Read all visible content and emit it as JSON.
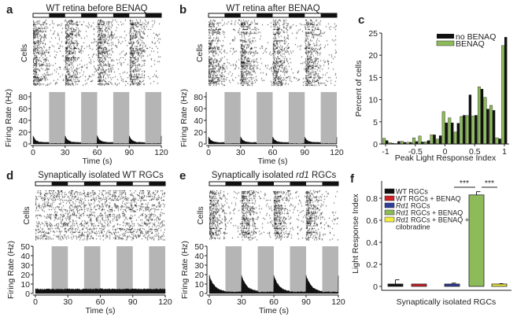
{
  "panels": {
    "a": {
      "label": "a",
      "title": "WT retina before BENAQ",
      "ylabel_raster": "Cells",
      "ylabel": "Firing Rate (Hz)",
      "xlabel": "Time (s)",
      "yticks": [
        "0",
        "20",
        "40",
        "60",
        "80"
      ],
      "xticks": [
        "0",
        "30",
        "60",
        "90",
        "120"
      ]
    },
    "b": {
      "label": "b",
      "title": "WT retina after BENAQ",
      "ylabel_raster": "Cells",
      "ylabel": "Firing Rate (Hz)",
      "xlabel": "Time (s)",
      "yticks": [
        "0",
        "20",
        "40",
        "60",
        "80"
      ],
      "xticks": [
        "0",
        "30",
        "60",
        "90",
        "120"
      ]
    },
    "d": {
      "label": "d",
      "title": "Synaptically isolated WT RGCs",
      "ylabel_raster": "Cells",
      "ylabel": "Firing Rate (Hz)",
      "xlabel": "Time (s)",
      "yticks": [
        "0",
        "10",
        "20",
        "30",
        "40",
        "50"
      ],
      "xticks": [
        "0",
        "30",
        "60",
        "90",
        "120"
      ]
    },
    "e": {
      "label": "e",
      "title_pre": "Synaptically isolated ",
      "title_it": "rd1",
      "title_post": " RGCs",
      "ylabel_raster": "Cells",
      "ylabel": "Firing Rate (Hz)",
      "xlabel": "Time (s)",
      "yticks": [
        "0",
        "10",
        "20",
        "30",
        "40",
        "50"
      ],
      "xticks": [
        "0",
        "30",
        "60",
        "90",
        "120"
      ]
    },
    "c": {
      "label": "c"
    },
    "f": {
      "label": "f"
    }
  },
  "colors": {
    "black": "#111111",
    "green": "#8dbb5a",
    "red": "#d22027",
    "blue": "#2f3e9a",
    "yellow": "#f3ee3c",
    "shade": "#b5b5b5"
  },
  "chart_data": [
    {
      "panel": "a",
      "type": "area",
      "xlim": [
        0,
        120
      ],
      "ylim": [
        0,
        88
      ],
      "stimulus_period_s": 30,
      "light_on": [
        [
          0,
          15
        ],
        [
          30,
          45
        ],
        [
          60,
          75
        ],
        [
          90,
          105
        ]
      ],
      "light_off": [
        [
          15,
          30
        ],
        [
          45,
          60
        ],
        [
          75,
          90
        ],
        [
          105,
          120
        ]
      ],
      "trace": {
        "peak_hz": 14,
        "baseline_hz": 2.5,
        "decay_s": 2.5,
        "dark_hz": 0.5
      },
      "raster": "transient"
    },
    {
      "panel": "b",
      "type": "area",
      "xlim": [
        0,
        120
      ],
      "ylim": [
        0,
        88
      ],
      "stimulus_period_s": 30,
      "light_on": [
        [
          0,
          15
        ],
        [
          30,
          45
        ],
        [
          60,
          75
        ],
        [
          90,
          105
        ]
      ],
      "light_off": [
        [
          15,
          30
        ],
        [
          45,
          60
        ],
        [
          75,
          90
        ],
        [
          105,
          120
        ]
      ],
      "trace": {
        "peak_hz": 12,
        "baseline_hz": 2.5,
        "decay_s": 2.5,
        "dark_hz": 0.5
      },
      "raster": "transient"
    },
    {
      "panel": "d",
      "type": "area",
      "xlim": [
        0,
        120
      ],
      "ylim": [
        0,
        50
      ],
      "stimulus_period_s": 30,
      "light_on": [
        [
          0,
          15
        ],
        [
          30,
          45
        ],
        [
          60,
          75
        ],
        [
          90,
          105
        ]
      ],
      "light_off": [
        [
          15,
          30
        ],
        [
          45,
          60
        ],
        [
          75,
          90
        ],
        [
          105,
          120
        ]
      ],
      "trace": {
        "peak_hz": 5,
        "baseline_hz": 4.5,
        "decay_s": 1,
        "dark_hz": 4.5
      },
      "raster": "tonic"
    },
    {
      "panel": "e",
      "type": "area",
      "xlim": [
        0,
        120
      ],
      "ylim": [
        0,
        50
      ],
      "stimulus_period_s": 30,
      "light_on": [
        [
          0,
          15
        ],
        [
          30,
          45
        ],
        [
          60,
          75
        ],
        [
          90,
          105
        ]
      ],
      "light_off": [
        [
          15,
          30
        ],
        [
          45,
          60
        ],
        [
          75,
          90
        ],
        [
          105,
          120
        ]
      ],
      "trace": {
        "peak_hz": 19,
        "baseline_hz": 1.5,
        "decay_s": 5,
        "dark_hz": 1.5
      },
      "raster": "transient"
    },
    {
      "panel": "c",
      "type": "bar",
      "title": "",
      "xlabel": "Peak Light Response Index",
      "ylabel": "Percent of cells",
      "xlim": [
        -1.07,
        1.05
      ],
      "ylim": [
        0,
        25
      ],
      "xticks": [
        "-1",
        "-0.5",
        "0",
        "0.5",
        "1"
      ],
      "xtick_values": [
        -1,
        -0.5,
        0,
        0.5,
        1
      ],
      "yticks": [
        "0",
        "5",
        "10",
        "15",
        "20",
        "25"
      ],
      "ytick_values": [
        0,
        5,
        10,
        15,
        20,
        25
      ],
      "legend_position": "top-right",
      "categories": [
        -1,
        -0.9,
        -0.8,
        -0.7,
        -0.6,
        -0.5,
        -0.4,
        -0.3,
        -0.2,
        -0.1,
        0,
        0.1,
        0.2,
        0.3,
        0.4,
        0.5,
        0.6,
        0.7,
        0.8,
        0.9,
        1.0
      ],
      "series": [
        {
          "name": "BENAQ",
          "color": "#8dbb5a",
          "values": [
            1.3,
            0.3,
            0.1,
            0.6,
            0.4,
            1.4,
            1.8,
            0.5,
            2.1,
            1.1,
            7.3,
            5.9,
            2.7,
            6.2,
            6.4,
            6.3,
            12.9,
            10.5,
            8.7,
            1.4,
            22.2
          ]
        },
        {
          "name": "no BENAQ",
          "color": "#111111",
          "values": [
            0.8,
            0.2,
            0.6,
            0.4,
            0.4,
            0.6,
            0.5,
            0.8,
            2.1,
            1.9,
            4.8,
            4.8,
            4.7,
            6.5,
            11.1,
            6.5,
            12.4,
            7.9,
            7.6,
            1.2,
            24.1
          ]
        }
      ],
      "legend": [
        "no BENAQ",
        "BENAQ"
      ]
    },
    {
      "panel": "f",
      "type": "bar",
      "xlabel": "Synaptically isolated RGCs",
      "ylabel": "Light Response Index",
      "ylim": [
        0,
        0.96
      ],
      "yticks": [
        "0",
        "0.2",
        "0.4",
        "0.6",
        "0.8"
      ],
      "ytick_values": [
        0,
        0.2,
        0.4,
        0.6,
        0.8
      ],
      "categories": [
        "WT RGCs",
        "WT RGCs + BENAQ",
        "Rd1 RGCs",
        "Rd1 RGCs + BENAQ",
        "Rd1 RGCs + BENAQ + cilobradine"
      ],
      "legend": [
        {
          "it": "",
          "text": "WT RGCs",
          "color": "#111111"
        },
        {
          "it": "",
          "text": "WT RGCs + BENAQ",
          "color": "#d22027"
        },
        {
          "it": "Rd1",
          "text": " RGCs",
          "color": "#2f3e9a"
        },
        {
          "it": "Rd1",
          "text": " RGCs + BENAQ",
          "color": "#8dbb5a"
        },
        {
          "it": "Rd1",
          "text": " RGCs + BENAQ +",
          "color": "#f3ee3c"
        }
      ],
      "legend_cont": "cilobradine",
      "values": [
        0.02,
        0.0,
        0.0,
        0.83,
        0.015
      ],
      "errors": [
        0.04,
        0.01,
        0.03,
        0.03,
        0.01
      ],
      "colors": [
        "#111111",
        "#d22027",
        "#2f3e9a",
        "#8dbb5a",
        "#f3ee3c"
      ],
      "significance": [
        "***",
        "***"
      ]
    }
  ]
}
